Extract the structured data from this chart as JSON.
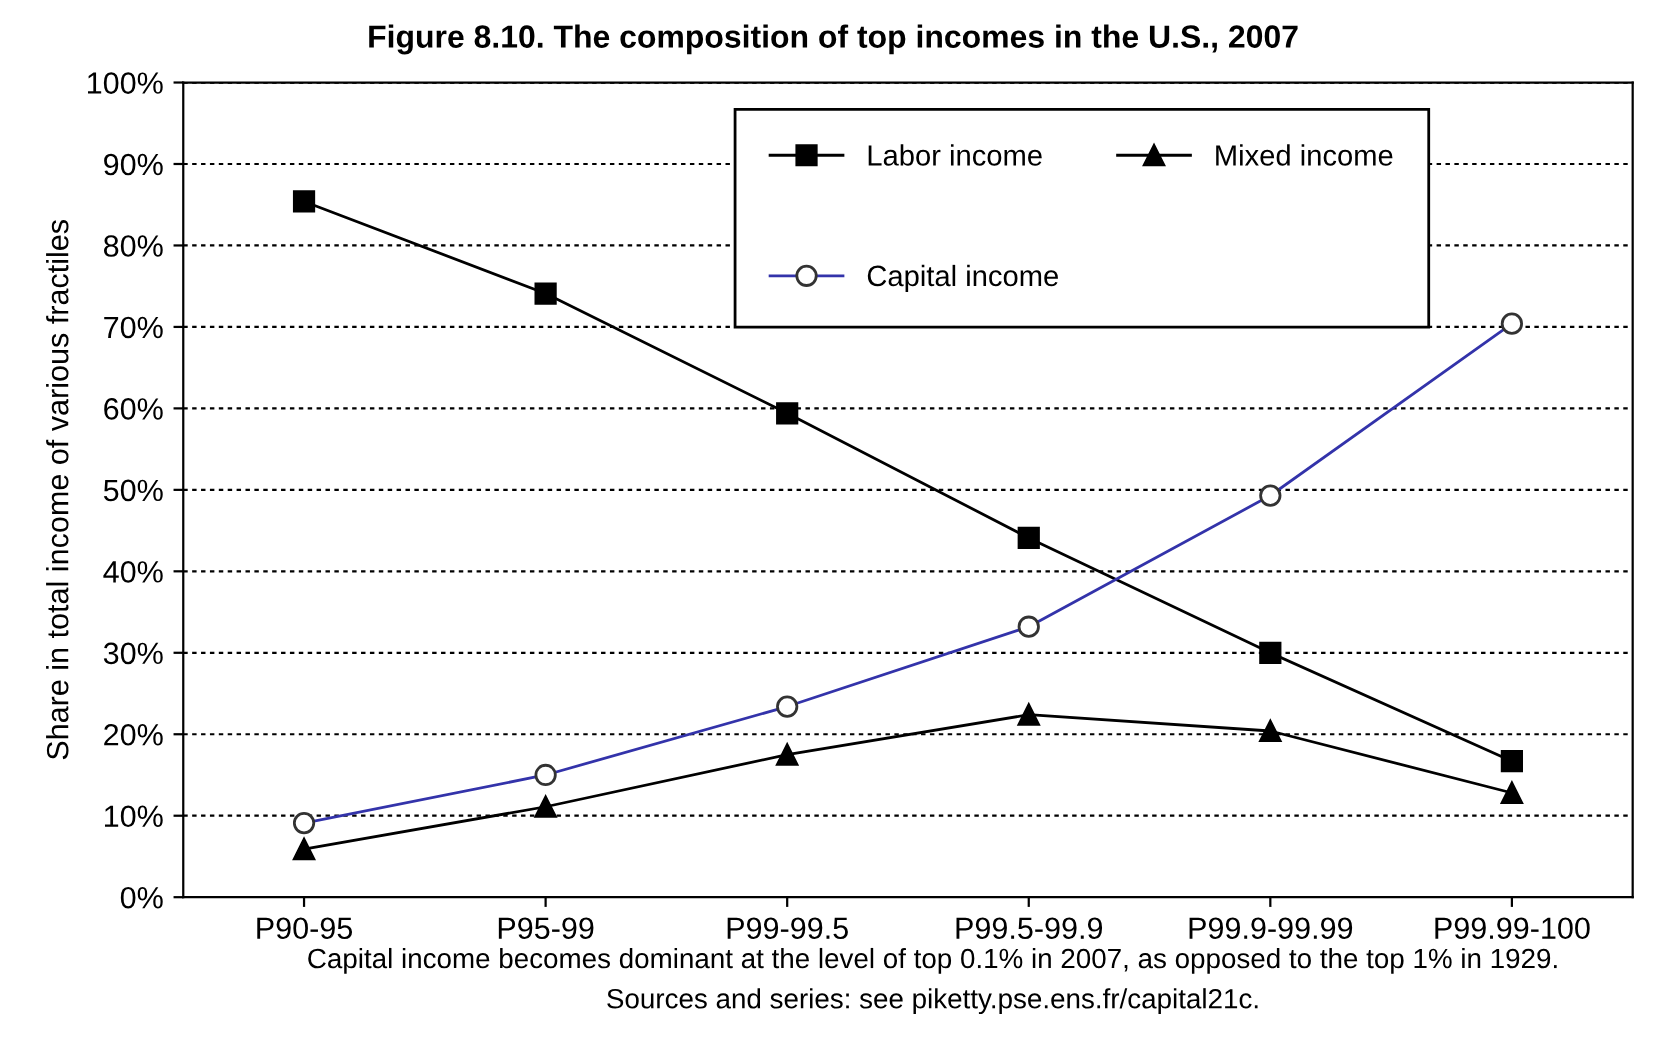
{
  "chart_data": {
    "type": "line",
    "title": "Figure 8.10. The composition of top incomes in the U.S., 2007",
    "ylabel": "Share in total income of various fractiles",
    "categories": [
      "P90-95",
      "P95-99",
      "P99-99.5",
      "P99.5-99.9",
      "P99.9-99.99",
      "P99.99-100"
    ],
    "series": [
      {
        "name": "Labor income",
        "color": "#000000",
        "marker": "square",
        "values": [
          85.4,
          74.1,
          59.4,
          44.1,
          30.0,
          16.7
        ]
      },
      {
        "name": "Capital income",
        "color": "#3333aa",
        "marker": "circle",
        "values": [
          9.1,
          15.0,
          23.4,
          33.2,
          49.3,
          70.4
        ]
      },
      {
        "name": "Mixed income",
        "color": "#000000",
        "marker": "triangle",
        "values": [
          5.9,
          11.1,
          17.5,
          22.4,
          20.4,
          12.8
        ]
      }
    ],
    "ylim": [
      0,
      100
    ],
    "yticks": [
      {
        "value": 0,
        "label": "0%"
      },
      {
        "value": 10,
        "label": "10%"
      },
      {
        "value": 20,
        "label": "20%"
      },
      {
        "value": 30,
        "label": "30%"
      },
      {
        "value": 40,
        "label": "40%"
      },
      {
        "value": 50,
        "label": "50%"
      },
      {
        "value": 60,
        "label": "60%"
      },
      {
        "value": 70,
        "label": "70%"
      },
      {
        "value": 80,
        "label": "80%"
      },
      {
        "value": 90,
        "label": "90%"
      },
      {
        "value": 100,
        "label": "100%"
      }
    ],
    "grid": "y",
    "legend": "top",
    "line_style": "solid",
    "annotations": [
      "Capital income becomes dominant at the level of top 0.1% in 2007, as opposed to the top 1% in 1929.",
      "Sources and series: see piketty.pse.ens.fr/capital21c."
    ]
  }
}
